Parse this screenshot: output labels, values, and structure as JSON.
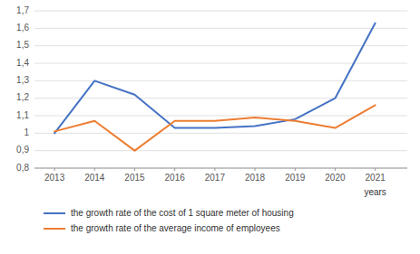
{
  "chart_data": {
    "type": "line",
    "x_label": "years",
    "x": [
      2013,
      2014,
      2015,
      2016,
      2017,
      2018,
      2019,
      2020,
      2021
    ],
    "series": [
      {
        "name": "the growth rate of the cost of 1 square meter of housing",
        "color": "#4472C4",
        "values": [
          1.0,
          1.3,
          1.22,
          1.03,
          1.03,
          1.04,
          1.08,
          1.2,
          1.63
        ]
      },
      {
        "name": "the growth rate of the average income of employees",
        "color": "#ED7D31",
        "values": [
          1.01,
          1.07,
          0.9,
          1.07,
          1.07,
          1.09,
          1.07,
          1.03,
          1.16
        ]
      }
    ],
    "xlim": [
      2012.5,
      2021.8
    ],
    "xticks": [
      2013,
      2014,
      2015,
      2016,
      2017,
      2018,
      2019,
      2020,
      2021
    ],
    "ylim": [
      0.8,
      1.7
    ],
    "yticks": [
      {
        "value": 0.8,
        "label": "0,8"
      },
      {
        "value": 0.9,
        "label": "0,9"
      },
      1,
      {
        "value": 1.1,
        "label": "1,1"
      },
      {
        "value": 1.2,
        "label": "1,2"
      },
      {
        "value": 1.3,
        "label": "1,3"
      },
      {
        "value": 1.4,
        "label": "1,4"
      },
      {
        "value": 1.5,
        "label": "1,5"
      },
      {
        "value": 1.6,
        "label": "1,6"
      },
      {
        "value": 1.7,
        "label": "1,7"
      }
    ],
    "grid": true,
    "legend": "bottom"
  }
}
